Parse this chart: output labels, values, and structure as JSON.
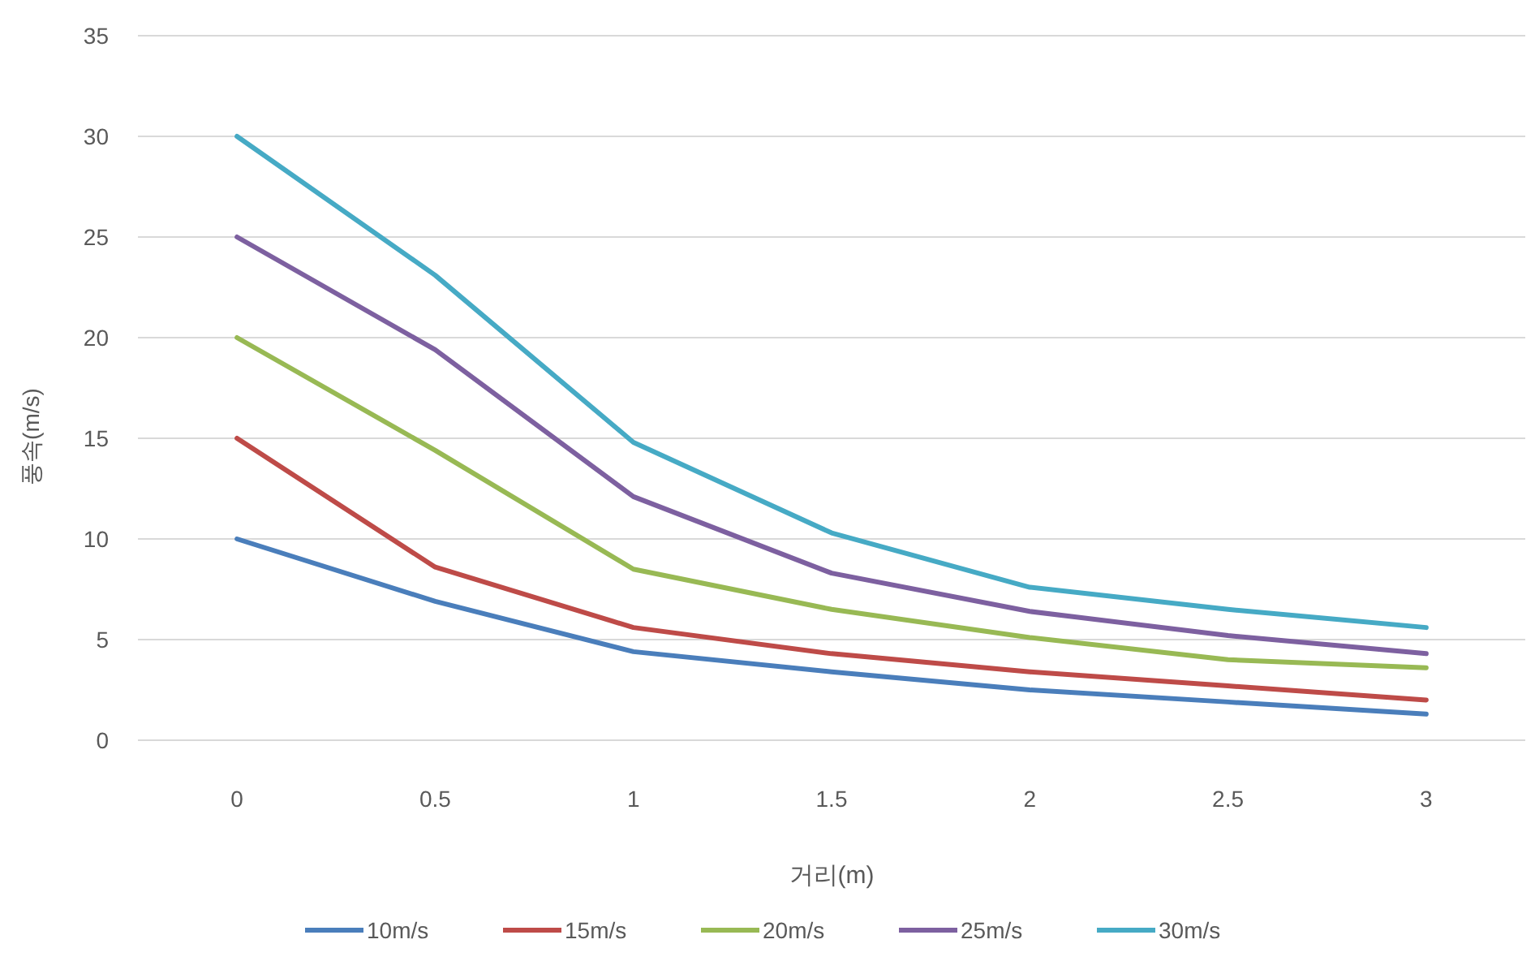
{
  "chart_data": {
    "type": "line",
    "xlabel": "거리(m)",
    "ylabel": "풍속(m/s)",
    "categories": [
      "0",
      "0.5",
      "1",
      "1.5",
      "2",
      "2.5",
      "3"
    ],
    "series": [
      {
        "name": "10m/s",
        "color": "#4a7ebb",
        "values": [
          10,
          6.9,
          4.4,
          3.4,
          2.5,
          1.9,
          1.3
        ]
      },
      {
        "name": "15m/s",
        "color": "#be4b48",
        "values": [
          15,
          8.6,
          5.6,
          4.3,
          3.4,
          2.7,
          2.0
        ]
      },
      {
        "name": "20m/s",
        "color": "#98b954",
        "values": [
          20,
          14.4,
          8.5,
          6.5,
          5.1,
          4.0,
          3.6
        ]
      },
      {
        "name": "25m/s",
        "color": "#7d60a0",
        "values": [
          25,
          19.4,
          12.1,
          8.3,
          6.4,
          5.2,
          4.3
        ]
      },
      {
        "name": "30m/s",
        "color": "#46aac5",
        "values": [
          30,
          23.1,
          14.8,
          10.3,
          7.6,
          6.5,
          5.6
        ]
      }
    ],
    "ylim": [
      0,
      35
    ],
    "yticks": [
      0,
      5,
      10,
      15,
      20,
      25,
      30,
      35
    ],
    "grid": "y",
    "legend": "bottom",
    "marker": "none",
    "line_style": "solid"
  }
}
